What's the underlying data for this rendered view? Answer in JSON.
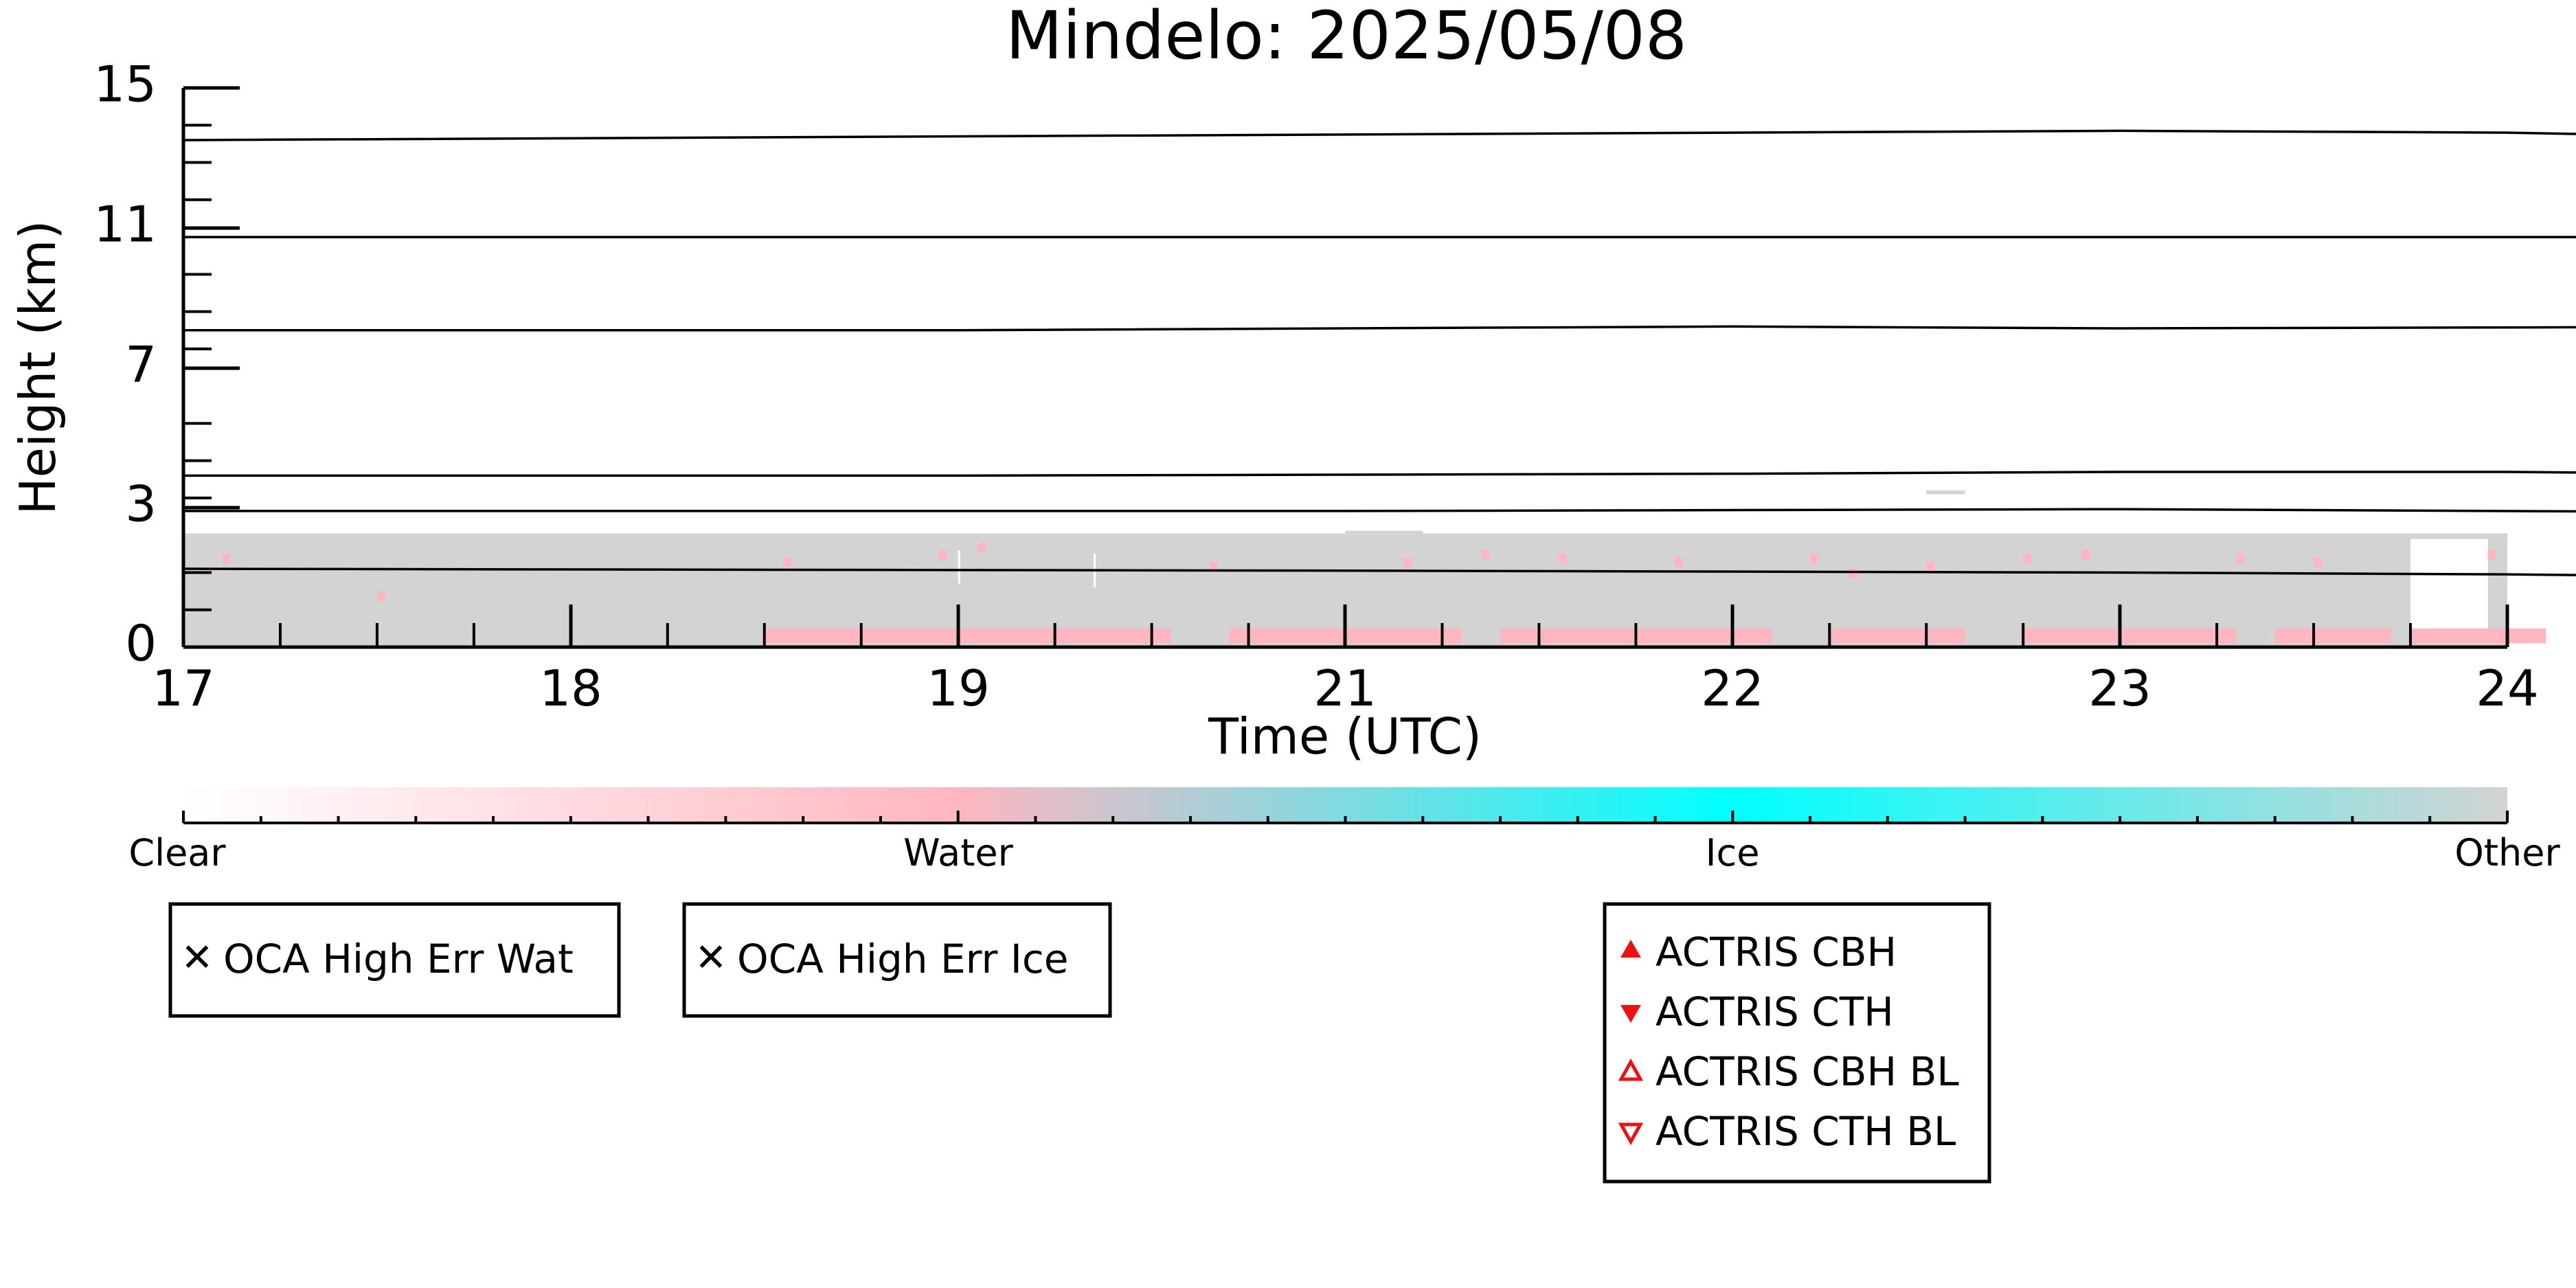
{
  "chart_data": {
    "type": "heatmap",
    "title": "Mindelo: 2025/05/08",
    "xlabel": "Time (UTC)",
    "ylabel": "Height (km)",
    "x_ticks": [
      "17",
      "18",
      "19",
      "21",
      "22",
      "23",
      "24"
    ],
    "y_ticks": [
      {
        "value": 0,
        "label": "0"
      },
      {
        "value": 3,
        "label": "3"
      },
      {
        "value": 7,
        "label": "7"
      },
      {
        "value": 11,
        "label": "11"
      },
      {
        "value": 15,
        "label": "15"
      }
    ],
    "ylim": [
      0,
      15
    ],
    "grid": false,
    "series": [
      {
        "values": [
          {
            "x": 0,
            "y": 13.6
          },
          {
            "x": 2,
            "y": 13.7
          },
          {
            "x": 4,
            "y": 13.8
          },
          {
            "x": 5,
            "y": 13.85
          },
          {
            "x": 6,
            "y": 13.8
          },
          {
            "x": 7,
            "y": 13.6
          }
        ]
      },
      {
        "values": [
          {
            "x": 0,
            "y": 11.0
          },
          {
            "x": 3,
            "y": 11.0
          },
          {
            "x": 5,
            "y": 11.0
          },
          {
            "x": 7,
            "y": 11.0
          }
        ]
      },
      {
        "values": [
          {
            "x": 0,
            "y": 8.5
          },
          {
            "x": 2,
            "y": 8.5
          },
          {
            "x": 4,
            "y": 8.6
          },
          {
            "x": 5,
            "y": 8.55
          },
          {
            "x": 7,
            "y": 8.6
          }
        ]
      },
      {
        "values": [
          {
            "x": 0,
            "y": 4.6
          },
          {
            "x": 2,
            "y": 4.6
          },
          {
            "x": 4,
            "y": 4.65
          },
          {
            "x": 5,
            "y": 4.7
          },
          {
            "x": 6,
            "y": 4.7
          },
          {
            "x": 7,
            "y": 4.6
          }
        ]
      },
      {
        "values": [
          {
            "x": 0,
            "y": 3.65
          },
          {
            "x": 3,
            "y": 3.65
          },
          {
            "x": 5,
            "y": 3.7
          },
          {
            "x": 7,
            "y": 3.6
          }
        ]
      },
      {
        "values": [
          {
            "x": 0,
            "y": 2.1
          },
          {
            "x": 3,
            "y": 2.05
          },
          {
            "x": 5,
            "y": 2.0
          },
          {
            "x": 6,
            "y": 1.95
          },
          {
            "x": 7,
            "y": 1.85
          }
        ]
      }
    ],
    "colorbar": {
      "labels": [
        "Clear",
        "Water",
        "Ice",
        "Other"
      ],
      "colors": [
        "#ffffff",
        "#ffb6c1",
        "#00ffff",
        "#d3d3d3"
      ]
    },
    "legend_marker_boxes": [
      {
        "items": [
          {
            "label": "OCA High Err Wat",
            "marker": "x",
            "color": "#22bb22"
          }
        ]
      },
      {
        "items": [
          {
            "label": "OCA High Err Ice",
            "marker": "x",
            "color": "#1010dd"
          }
        ]
      },
      {
        "items": [
          {
            "label": "ACTRIS CBH",
            "marker": "triangle-up-filled",
            "color": "#ee1111"
          },
          {
            "label": "ACTRIS CTH",
            "marker": "triangle-down-filled",
            "color": "#ee1111"
          },
          {
            "label": "ACTRIS CBH BL",
            "marker": "triangle-up-open",
            "color": "#ee1111"
          },
          {
            "label": "ACTRIS CTH BL",
            "marker": "triangle-down-open",
            "color": "#ee1111"
          }
        ]
      }
    ],
    "cloud_colors": {
      "other": "#d3d3d3",
      "water": "#ffb6c1",
      "gap": "#ffffff"
    }
  }
}
